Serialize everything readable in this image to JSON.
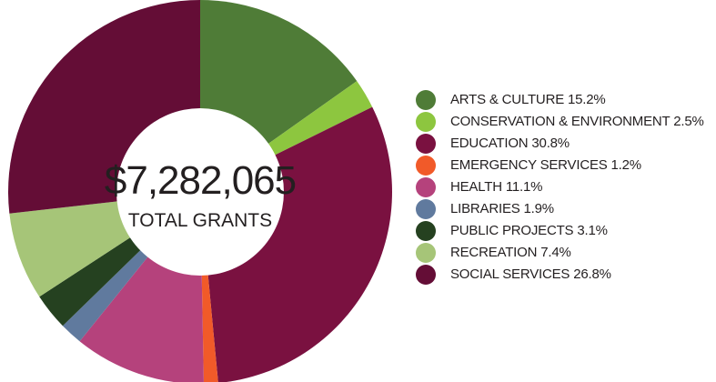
{
  "chart_data": {
    "type": "donut",
    "center": {
      "amount": "$7,282,065",
      "label": "TOTAL GRANTS"
    },
    "series": [
      {
        "name": "ARTS & CULTURE",
        "value": 15.2,
        "label": "15.2%",
        "color": "#4f7c37"
      },
      {
        "name": "CONSERVATION & ENVIRONMENT",
        "value": 2.5,
        "label": "2.5%",
        "color": "#8dc63f"
      },
      {
        "name": "EDUCATION",
        "value": 30.8,
        "label": "30.8%",
        "color": "#7a1140"
      },
      {
        "name": "EMERGENCY SERVICES",
        "value": 1.2,
        "label": "1.2%",
        "color": "#f15a29"
      },
      {
        "name": "HEALTH",
        "value": 11.1,
        "label": "11.1%",
        "color": "#b5427c"
      },
      {
        "name": "LIBRARIES",
        "value": 1.9,
        "label": "1.9%",
        "color": "#607a9e"
      },
      {
        "name": "PUBLIC PROJECTS",
        "value": 3.1,
        "label": "3.1%",
        "color": "#254120"
      },
      {
        "name": "RECREATION",
        "value": 7.4,
        "label": "7.4%",
        "color": "#a6c578"
      },
      {
        "name": "SOCIAL SERVICES",
        "value": 26.8,
        "label": "26.8%",
        "color": "#640d36"
      }
    ],
    "legend_placement": "right"
  }
}
